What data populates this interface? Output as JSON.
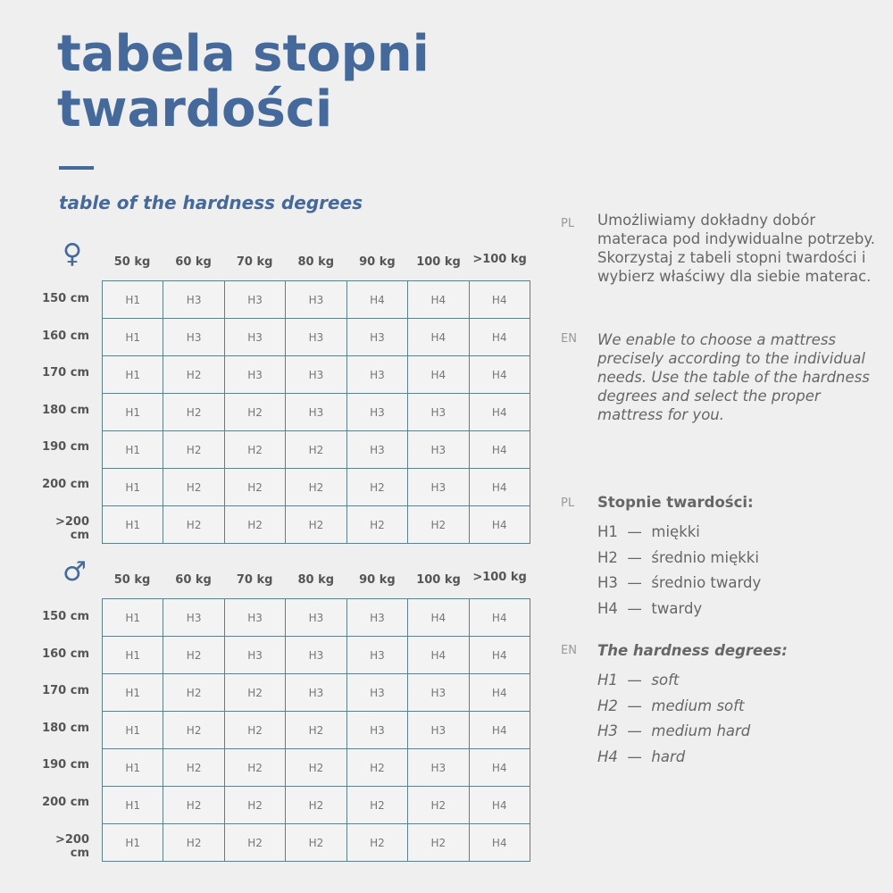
{
  "title_lines": [
    "tabela stopni",
    "twardości"
  ],
  "subtitle": "table of the hardness degrees",
  "columns": [
    "50 kg",
    "60 kg",
    "70 kg",
    "80 kg",
    "90 kg",
    "100 kg",
    ">100 kg"
  ],
  "rows": [
    "150 cm",
    "160 cm",
    "170 cm",
    "180 cm",
    "190 cm",
    "200 cm",
    ">200 cm"
  ],
  "tables": [
    {
      "gender": "female",
      "symbol": "♀",
      "cells": [
        [
          "H1",
          "H3",
          "H3",
          "H3",
          "H4",
          "H4",
          "H4"
        ],
        [
          "H1",
          "H3",
          "H3",
          "H3",
          "H3",
          "H4",
          "H4"
        ],
        [
          "H1",
          "H2",
          "H3",
          "H3",
          "H3",
          "H4",
          "H4"
        ],
        [
          "H1",
          "H2",
          "H2",
          "H3",
          "H3",
          "H3",
          "H4"
        ],
        [
          "H1",
          "H2",
          "H2",
          "H2",
          "H3",
          "H3",
          "H4"
        ],
        [
          "H1",
          "H2",
          "H2",
          "H2",
          "H2",
          "H3",
          "H4"
        ],
        [
          "H1",
          "H2",
          "H2",
          "H2",
          "H2",
          "H2",
          "H4"
        ]
      ]
    },
    {
      "gender": "male",
      "symbol": "♂",
      "cells": [
        [
          "H1",
          "H3",
          "H3",
          "H3",
          "H3",
          "H4",
          "H4"
        ],
        [
          "H1",
          "H2",
          "H3",
          "H3",
          "H3",
          "H4",
          "H4"
        ],
        [
          "H1",
          "H2",
          "H2",
          "H3",
          "H3",
          "H3",
          "H4"
        ],
        [
          "H1",
          "H2",
          "H2",
          "H2",
          "H3",
          "H3",
          "H4"
        ],
        [
          "H1",
          "H2",
          "H2",
          "H2",
          "H2",
          "H3",
          "H4"
        ],
        [
          "H1",
          "H2",
          "H2",
          "H2",
          "H2",
          "H2",
          "H4"
        ],
        [
          "H1",
          "H2",
          "H2",
          "H2",
          "H2",
          "H2",
          "H4"
        ]
      ]
    }
  ],
  "info": {
    "pl_label": "PL",
    "en_label": "EN",
    "pl_text": "Umożliwiamy dokładny dobór materaca pod indywidualne potrzeby. Skorzystaj z tabeli stopni twardości i wybierz właściwy dla siebie materac.",
    "en_text": "We enable to choose a mattress precisely according to the individual needs. Use the table of the hardness degrees and select the proper mattress for you."
  },
  "legend": {
    "pl_label": "PL",
    "pl_title": "Stopnie twardości:",
    "pl_items": [
      "H1  —  miękki",
      "H2  —  średnio miękki",
      "H3  —  średnio twardy",
      "H4  —  twardy"
    ],
    "en_label": "EN",
    "en_title": "The hardness degrees:",
    "en_items": [
      "H1  —  soft",
      "H2  —  medium soft",
      "H3  —  medium hard",
      "H4  —  hard"
    ]
  },
  "colors": {
    "accent": "#44699a",
    "border": "#5f8088",
    "background": "#efefef"
  }
}
